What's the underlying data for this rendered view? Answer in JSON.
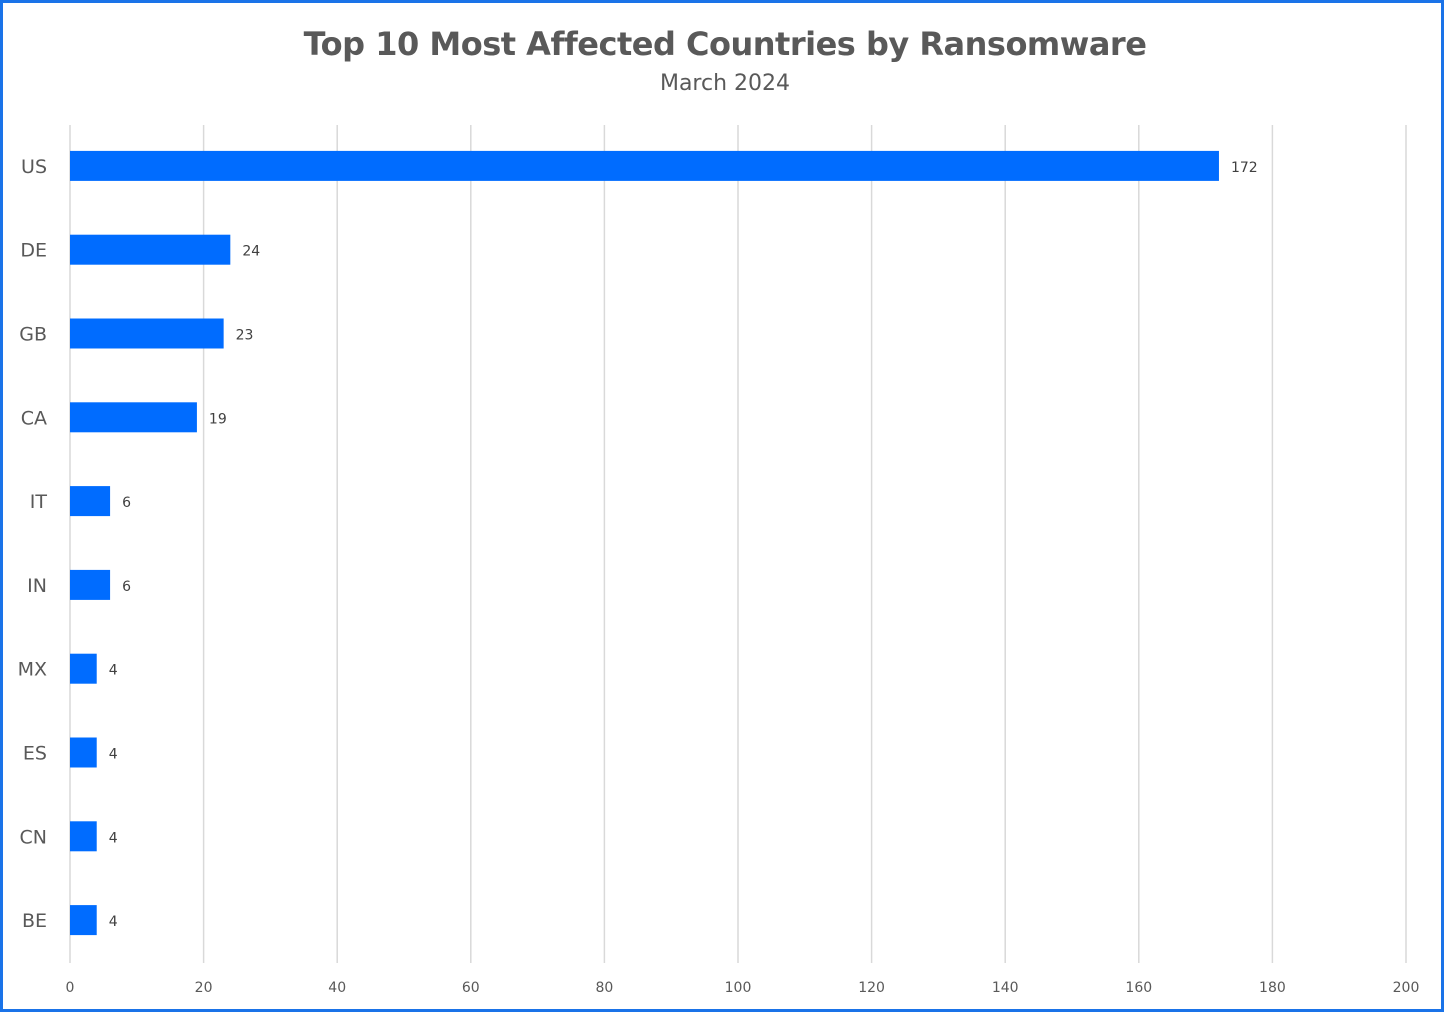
{
  "chart_data": {
    "type": "bar",
    "orientation": "horizontal",
    "title": "Top 10 Most Affected Countries by Ransomware",
    "subtitle": "March 2024",
    "categories": [
      "US",
      "DE",
      "GB",
      "CA",
      "IT",
      "IN",
      "MX",
      "ES",
      "CN",
      "BE"
    ],
    "values": [
      172,
      24,
      23,
      19,
      6,
      6,
      4,
      4,
      4,
      4
    ],
    "xlim": [
      0,
      200
    ],
    "xticks": [
      0,
      20,
      40,
      60,
      80,
      100,
      120,
      140,
      160,
      180,
      200
    ],
    "grid": "vertical",
    "legend": "none",
    "data_labels": true,
    "colors": {
      "bar": "#006cff",
      "grid": "#d9d9d9",
      "frame": "#1a73e8",
      "text": "#595959"
    }
  }
}
